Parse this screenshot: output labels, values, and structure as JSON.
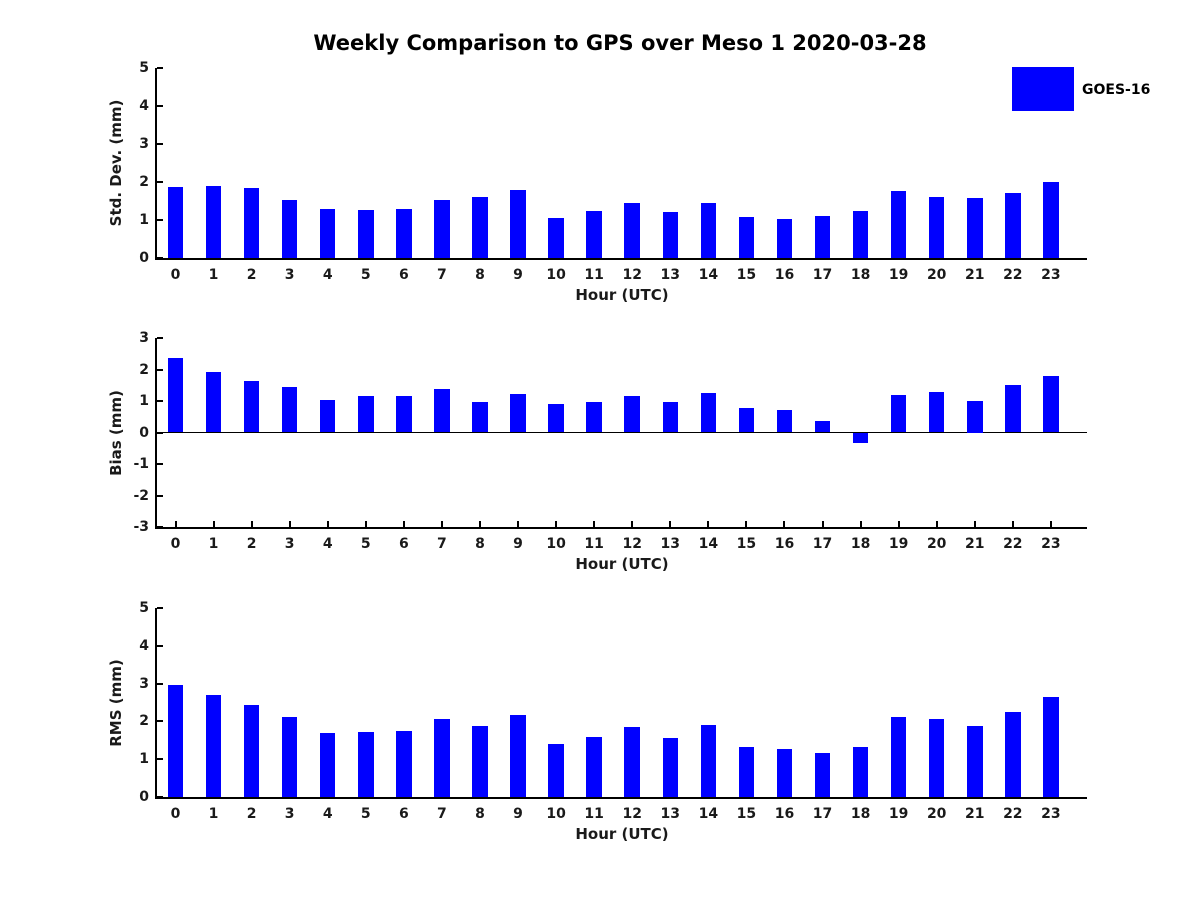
{
  "figure": {
    "title": "Weekly Comparison to GPS over Meso 1 2020-03-28"
  },
  "legend": {
    "label": "GOES-16",
    "color": "#0000FF",
    "position": "upper-right"
  },
  "chart_data": [
    {
      "type": "bar",
      "title": "",
      "ylabel": "Std. Dev. (mm)",
      "xlabel": "Hour (UTC)",
      "series_name": "GOES-16",
      "bar_color": "#0000FF",
      "grid": false,
      "categories": [
        "0",
        "1",
        "2",
        "3",
        "4",
        "5",
        "6",
        "7",
        "8",
        "9",
        "10",
        "11",
        "12",
        "13",
        "14",
        "15",
        "16",
        "17",
        "18",
        "19",
        "20",
        "21",
        "22",
        "23"
      ],
      "values": [
        1.88,
        1.89,
        1.83,
        1.52,
        1.28,
        1.26,
        1.28,
        1.52,
        1.6,
        1.8,
        1.06,
        1.24,
        1.44,
        1.22,
        1.45,
        1.08,
        1.03,
        1.1,
        1.25,
        1.76,
        1.6,
        1.58,
        1.71,
        1.99
      ],
      "ylim": [
        0,
        5
      ],
      "yticks": [
        0,
        1,
        2,
        3,
        4,
        5
      ]
    },
    {
      "type": "bar",
      "title": "",
      "ylabel": "Bias (mm)",
      "xlabel": "Hour (UTC)",
      "series_name": "GOES-16",
      "bar_color": "#0000FF",
      "grid": false,
      "categories": [
        "0",
        "1",
        "2",
        "3",
        "4",
        "5",
        "6",
        "7",
        "8",
        "9",
        "10",
        "11",
        "12",
        "13",
        "14",
        "15",
        "16",
        "17",
        "18",
        "19",
        "20",
        "21",
        "22",
        "23"
      ],
      "values": [
        2.35,
        1.93,
        1.64,
        1.45,
        1.03,
        1.17,
        1.16,
        1.39,
        0.97,
        1.22,
        0.92,
        0.97,
        1.17,
        0.98,
        1.26,
        0.79,
        0.73,
        0.35,
        -0.33,
        1.19,
        1.3,
        1.0,
        1.51,
        1.8
      ],
      "ylim": [
        -3,
        3
      ],
      "yticks": [
        3,
        2,
        1,
        0,
        -1,
        -2,
        -3
      ]
    },
    {
      "type": "bar",
      "title": "",
      "ylabel": "RMS (mm)",
      "xlabel": "Hour (UTC)",
      "series_name": "GOES-16",
      "bar_color": "#0000FF",
      "grid": false,
      "categories": [
        "0",
        "1",
        "2",
        "3",
        "4",
        "5",
        "6",
        "7",
        "8",
        "9",
        "10",
        "11",
        "12",
        "13",
        "14",
        "15",
        "16",
        "17",
        "18",
        "19",
        "20",
        "21",
        "22",
        "23"
      ],
      "values": [
        2.97,
        2.7,
        2.44,
        2.11,
        1.68,
        1.72,
        1.75,
        2.07,
        1.88,
        2.18,
        1.41,
        1.6,
        1.86,
        1.56,
        1.91,
        1.33,
        1.27,
        1.17,
        1.31,
        2.12,
        2.06,
        1.88,
        2.26,
        2.64
      ],
      "ylim": [
        0,
        5
      ],
      "yticks": [
        0,
        1,
        2,
        3,
        4,
        5
      ]
    }
  ]
}
